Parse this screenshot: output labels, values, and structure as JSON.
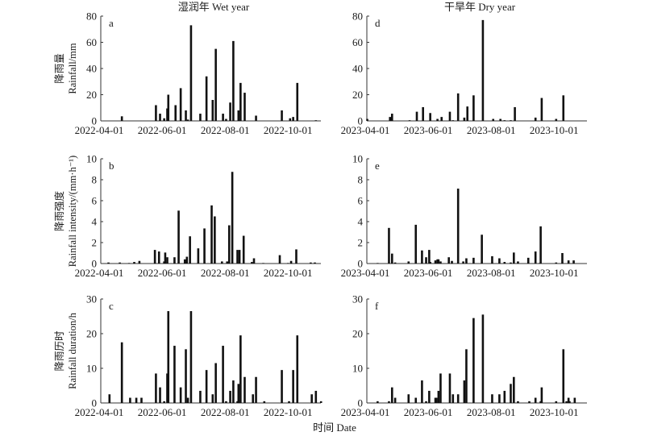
{
  "figure": {
    "xlabel": "时间 Date",
    "bar_color": "#111111",
    "axis_color": "#333333"
  },
  "chart_data": [
    {
      "type": "bar",
      "panel": "a",
      "title": "湿润年 Wet year",
      "ylabel_cn": "降雨量",
      "ylabel_en": "Rainfall/mm",
      "ylim": [
        0,
        80
      ],
      "yticks": [
        "0",
        "20",
        "40",
        "60",
        "80"
      ],
      "x_unit": "days since 2022-04-01",
      "xlim": [
        0,
        214
      ],
      "xtick_days": [
        0,
        61,
        122,
        183
      ],
      "xticks": [
        "2022-04-01",
        "2022-06-01",
        "2022-08-01",
        "2022-10-01"
      ],
      "x": [
        22,
        55,
        59,
        63,
        66,
        67,
        74,
        79,
        84,
        86,
        89,
        98,
        104,
        110,
        113,
        120,
        123,
        127,
        130,
        135,
        137,
        141,
        152,
        177,
        185,
        188,
        192,
        210
      ],
      "values": [
        3.5,
        12,
        5.5,
        2,
        9.5,
        20,
        12,
        25,
        8,
        1,
        73,
        5.5,
        34,
        16,
        55,
        5.5,
        1.5,
        14,
        61,
        8,
        29,
        21.5,
        4,
        8,
        2,
        3,
        29,
        0.5
      ]
    },
    {
      "type": "bar",
      "panel": "d",
      "title": "干旱年 Dry year",
      "ylabel_cn": "",
      "ylabel_en": "",
      "ylim": [
        0,
        80
      ],
      "yticks": [
        "0",
        "20",
        "40",
        "60",
        "80"
      ],
      "x_unit": "days since 2023-04-01",
      "xlim": [
        0,
        214
      ],
      "xtick_days": [
        0,
        61,
        122,
        183
      ],
      "xticks": [
        "2023-04-01",
        "2023-06-01",
        "2023-08-01",
        "2023-10-01"
      ],
      "x": [
        2,
        24,
        26,
        43,
        50,
        56,
        63,
        70,
        74,
        82,
        85,
        90,
        96,
        99,
        105,
        114,
        124,
        131,
        135,
        141,
        145,
        165,
        171,
        185,
        192
      ],
      "values": [
        1.5,
        3,
        5.5,
        0.5,
        7,
        10.5,
        6,
        1.5,
        3,
        7,
        0.5,
        21,
        2.5,
        11,
        19.5,
        77,
        1.5,
        1.5,
        0.5,
        0.5,
        10.5,
        2.5,
        17.5,
        1.5,
        19.5
      ]
    },
    {
      "type": "bar",
      "panel": "b",
      "title": "",
      "ylabel_cn": "降雨强度",
      "ylabel_en": "Rainfall intensity/(mm·h⁻¹)",
      "ylim": [
        0,
        10
      ],
      "yticks": [
        "0",
        "2",
        "4",
        "6",
        "8",
        "10"
      ],
      "x_unit": "days since 2022-04-01",
      "xlim": [
        0,
        214
      ],
      "xtick_days": [
        0,
        61,
        122,
        183
      ],
      "xticks": [
        "2022-04-01",
        "2022-06-01",
        "2022-08-01",
        "2022-10-01"
      ],
      "x": [
        9,
        20,
        29,
        34,
        39,
        54,
        58,
        63,
        64,
        66,
        73,
        77,
        83,
        85,
        88,
        96,
        102,
        109,
        112,
        119,
        124,
        126,
        129,
        134,
        136,
        140,
        148,
        150,
        159,
        175,
        183,
        186,
        191,
        205,
        209
      ],
      "values": [
        0.1,
        0.1,
        0.05,
        0.15,
        0.25,
        1.3,
        1.15,
        0.2,
        1.05,
        0.6,
        0.6,
        5.05,
        0.4,
        0.65,
        2.6,
        1.45,
        3.35,
        5.55,
        4.5,
        0.2,
        0.2,
        3.65,
        8.75,
        1.3,
        1.3,
        2.65,
        0.15,
        0.5,
        0.05,
        0.8,
        0.05,
        0.25,
        1.35,
        0.1,
        0.1
      ]
    },
    {
      "type": "bar",
      "panel": "e",
      "title": "",
      "ylabel_cn": "",
      "ylabel_en": "",
      "ylim": [
        0,
        10
      ],
      "yticks": [
        "0",
        "2",
        "4",
        "6",
        "8",
        "10"
      ],
      "x_unit": "days since 2023-04-01",
      "xlim": [
        0,
        214
      ],
      "xtick_days": [
        0,
        61,
        122,
        183
      ],
      "xticks": [
        "2023-04-01",
        "2023-06-01",
        "2023-08-01",
        "2023-10-01"
      ],
      "x": [
        12,
        23,
        26,
        29,
        42,
        49,
        55,
        59,
        62,
        63,
        68,
        70,
        71,
        73,
        81,
        84,
        90,
        95,
        98,
        105,
        113,
        123,
        130,
        135,
        141,
        144,
        148,
        158,
        165,
        169,
        170,
        185,
        191,
        197,
        202
      ],
      "values": [
        0.05,
        3.4,
        0.95,
        0.1,
        0.2,
        3.7,
        1.25,
        0.6,
        1.3,
        0.15,
        0.3,
        0.4,
        0.4,
        0.2,
        0.6,
        0.25,
        7.15,
        0.2,
        0.5,
        0.55,
        2.75,
        0.7,
        0.5,
        0.15,
        0.1,
        1.05,
        0.2,
        0.55,
        1.15,
        0.05,
        3.55,
        0.1,
        1.0,
        0.3,
        0.3
      ]
    },
    {
      "type": "bar",
      "panel": "c",
      "title": "",
      "ylabel_cn": "降雨历时",
      "ylabel_en": "Rainfall duration/h",
      "ylim": [
        0,
        30
      ],
      "yticks": [
        "0",
        "10",
        "20",
        "30"
      ],
      "x_unit": "days since 2022-04-01",
      "xlim": [
        0,
        214
      ],
      "xtick_days": [
        0,
        61,
        122,
        183
      ],
      "xticks": [
        "2022-04-01",
        "2022-06-01",
        "2022-08-01",
        "2022-10-01"
      ],
      "x": [
        10,
        22,
        30,
        36,
        41,
        55,
        59,
        63,
        66,
        67,
        73,
        79,
        84,
        86,
        89,
        98,
        104,
        110,
        113,
        120,
        123,
        127,
        130,
        134,
        135,
        137,
        141,
        149,
        152,
        160,
        177,
        184,
        188,
        192,
        206,
        210,
        215
      ],
      "values": [
        2.5,
        17.5,
        1.5,
        1.5,
        1.5,
        8.5,
        4.5,
        0.5,
        8.5,
        26.5,
        16.5,
        4.5,
        15.5,
        1.5,
        26.5,
        3.5,
        9.5,
        2.5,
        11.5,
        16.5,
        0.5,
        3.5,
        6.5,
        0.5,
        5.5,
        19.5,
        7.5,
        2.5,
        7.5,
        0.5,
        9.5,
        0.5,
        9.5,
        19.5,
        2.5,
        3.5,
        0.5
      ]
    },
    {
      "type": "bar",
      "panel": "f",
      "title": "",
      "ylabel_cn": "",
      "ylabel_en": "",
      "ylim": [
        0,
        30
      ],
      "yticks": [
        "0",
        "10",
        "20",
        "30"
      ],
      "x_unit": "days since 2023-04-01",
      "xlim": [
        0,
        214
      ],
      "xtick_days": [
        0,
        61,
        122,
        183
      ],
      "xticks": [
        "2023-04-01",
        "2023-06-01",
        "2023-08-01",
        "2023-10-01"
      ],
      "x": [
        12,
        23,
        26,
        29,
        42,
        49,
        55,
        59,
        62,
        68,
        69,
        71,
        73,
        82,
        85,
        90,
        96,
        98,
        105,
        114,
        123,
        130,
        135,
        141,
        144,
        148,
        159,
        165,
        170,
        171,
        185,
        192,
        195,
        197,
        198,
        203
      ],
      "values": [
        0.5,
        0.5,
        4.5,
        1.5,
        2.5,
        1.5,
        6.5,
        0.5,
        3.5,
        1.5,
        1.5,
        3.5,
        8.5,
        8.5,
        2.5,
        2.5,
        6.5,
        15.5,
        24.5,
        25.5,
        2.5,
        2.5,
        3.5,
        5.5,
        7.5,
        0.5,
        0.5,
        1.5,
        0.5,
        4.5,
        0.5,
        15.5,
        0.5,
        1.5,
        0.5,
        1.5
      ]
    }
  ]
}
